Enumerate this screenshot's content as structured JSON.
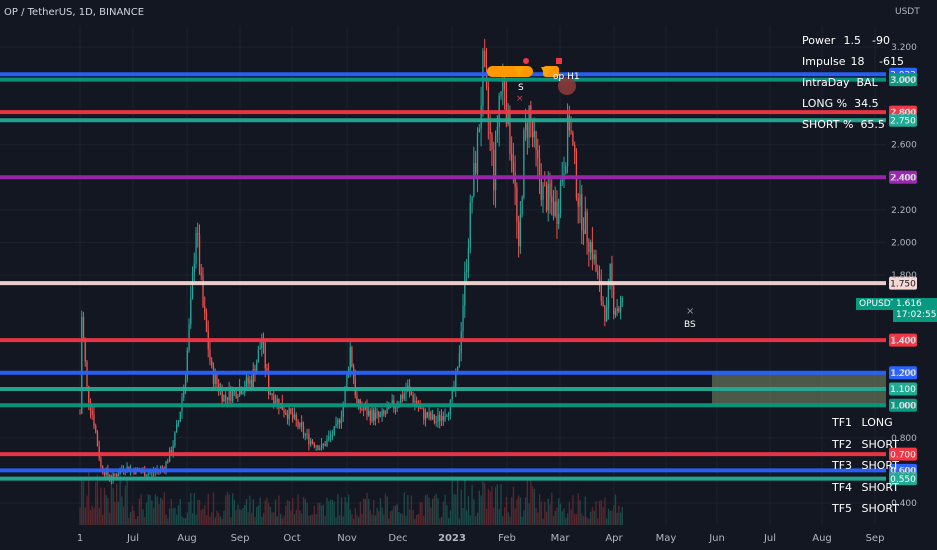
{
  "header": {
    "title": "OP / TetherUS, 1D, BINANCE",
    "unit": "USDT"
  },
  "stats": [
    {
      "key": "Power",
      "v1": "1.5",
      "v2": "-90"
    },
    {
      "key": "Impulse",
      "v1": "18",
      "v2": "-615"
    },
    {
      "key": "IntraDay",
      "v1": "BAL",
      "v2": ""
    },
    {
      "key": "LONG %",
      "v1": "34.5",
      "v2": ""
    },
    {
      "key": "SHORT %",
      "v1": "65.5",
      "v2": ""
    }
  ],
  "timeframes": [
    {
      "tf": "TF1",
      "dir": "LONG"
    },
    {
      "tf": "TF2",
      "dir": "SHORT"
    },
    {
      "tf": "TF3",
      "dir": "SHORT"
    },
    {
      "tf": "TF4",
      "dir": "SHORT"
    },
    {
      "tf": "TF5",
      "dir": "SHORT"
    }
  ],
  "symbol": {
    "name": "OPUSDT",
    "price": "1.616",
    "countdown": "17:02:55"
  },
  "annotations": {
    "sell": "S",
    "top": "op H1",
    "bottom": "BS"
  },
  "colors": {
    "up": "#26a69a",
    "down": "#ef5350",
    "bg": "#131722",
    "grid": "#1e222d"
  },
  "chart_data": {
    "type": "candlestick",
    "x_ticks": [
      "1",
      "Jul",
      "Aug",
      "Sep",
      "Oct",
      "Nov",
      "Dec",
      "2023",
      "Feb",
      "Mar",
      "Apr",
      "May",
      "Jun",
      "Jul",
      "Aug",
      "Sep"
    ],
    "y_ticks": [
      3.2,
      3.0,
      2.8,
      2.6,
      2.4,
      2.2,
      2.0,
      1.8,
      1.4,
      1.2,
      1.0,
      0.8,
      0.6,
      0.4
    ],
    "y_tick_labels": [
      "3.200",
      "3.000",
      "2.800",
      "2.600",
      "2.400",
      "2.200",
      "2.000",
      "1.800",
      "1.400",
      "1.200",
      "1.000",
      "0.800",
      "0.600",
      "0.400"
    ],
    "ylim": [
      0.33,
      3.33
    ],
    "levels": [
      {
        "value": 3.033,
        "label": "3.033",
        "color": "#2962ff"
      },
      {
        "value": 3.0,
        "label": "3.000",
        "color": "#089981"
      },
      {
        "value": 2.8,
        "label": "2.800",
        "color": "#f23645"
      },
      {
        "value": 2.75,
        "label": "2.750",
        "color": "#22ab94"
      },
      {
        "value": 2.4,
        "label": "2.400",
        "color": "#9c27b0"
      },
      {
        "value": 1.75,
        "label": "1.750",
        "color": "#f7d7d4"
      },
      {
        "value": 1.4,
        "label": "1.400",
        "color": "#f23645"
      },
      {
        "value": 1.2,
        "label": "1.200",
        "color": "#2962ff"
      },
      {
        "value": 1.1,
        "label": "1.100",
        "color": "#22ab94"
      },
      {
        "value": 1.0,
        "label": "1.000",
        "color": "#089981"
      },
      {
        "value": 0.7,
        "label": "0.700",
        "color": "#f23645"
      },
      {
        "value": 0.6,
        "label": "0.600",
        "color": "#2962ff"
      },
      {
        "value": 0.55,
        "label": "0.550",
        "color": "#22ab94"
      }
    ],
    "zone": {
      "from": 1.0,
      "to": 1.2,
      "start_tick": "Jun"
    },
    "price_path": [
      [
        0,
        0.95
      ],
      [
        1,
        1.55
      ],
      [
        4,
        1.1
      ],
      [
        8,
        0.9
      ],
      [
        12,
        0.62
      ],
      [
        18,
        0.55
      ],
      [
        25,
        0.62
      ],
      [
        32,
        0.6
      ],
      [
        40,
        0.58
      ],
      [
        48,
        0.62
      ],
      [
        52,
        0.72
      ],
      [
        56,
        0.9
      ],
      [
        60,
        1.2
      ],
      [
        63,
        1.6
      ],
      [
        66,
        2.1
      ],
      [
        70,
        1.6
      ],
      [
        75,
        1.2
      ],
      [
        82,
        1.05
      ],
      [
        90,
        1.1
      ],
      [
        98,
        1.15
      ],
      [
        104,
        1.4
      ],
      [
        108,
        1.1
      ],
      [
        115,
        1.0
      ],
      [
        122,
        0.92
      ],
      [
        130,
        0.8
      ],
      [
        138,
        0.74
      ],
      [
        146,
        0.85
      ],
      [
        150,
        1.0
      ],
      [
        154,
        1.35
      ],
      [
        158,
        1.0
      ],
      [
        165,
        0.95
      ],
      [
        172,
        0.92
      ],
      [
        180,
        1.0
      ],
      [
        188,
        1.1
      ],
      [
        196,
        0.95
      ],
      [
        204,
        0.9
      ],
      [
        212,
        1.0
      ],
      [
        216,
        1.2
      ],
      [
        218,
        1.5
      ],
      [
        221,
        1.9
      ],
      [
        224,
        2.3
      ],
      [
        227,
        2.6
      ],
      [
        230,
        3.05
      ],
      [
        233,
        2.75
      ],
      [
        236,
        2.4
      ],
      [
        239,
        2.9
      ],
      [
        242,
        3.0
      ],
      [
        244,
        2.7
      ],
      [
        247,
        2.5
      ],
      [
        250,
        1.9
      ],
      [
        253,
        2.6
      ],
      [
        256,
        2.8
      ],
      [
        260,
        2.5
      ],
      [
        264,
        2.3
      ],
      [
        268,
        2.25
      ],
      [
        272,
        2.2
      ],
      [
        276,
        2.5
      ],
      [
        279,
        2.75
      ],
      [
        282,
        2.45
      ],
      [
        285,
        2.2
      ],
      [
        288,
        2.1
      ],
      [
        292,
        1.95
      ],
      [
        296,
        1.7
      ],
      [
        300,
        1.55
      ],
      [
        302,
        1.8
      ],
      [
        304,
        1.62
      ],
      [
        307,
        1.6
      ],
      [
        309,
        1.616
      ]
    ],
    "x_span": [
      0,
      365
    ]
  }
}
